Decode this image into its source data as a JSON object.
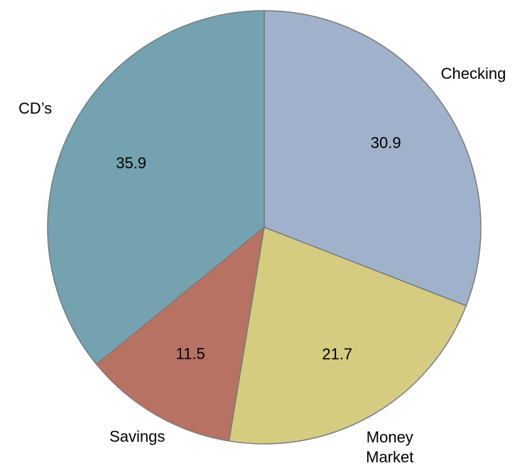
{
  "chart_data": {
    "type": "pie",
    "categories": [
      "Checking",
      "Money Market",
      "Savings",
      "CD’s"
    ],
    "values": [
      30.9,
      21.7,
      11.5,
      35.9
    ],
    "colors": [
      "#a0b2cb",
      "#d6cc80",
      "#b87264",
      "#74a2b0"
    ]
  }
}
